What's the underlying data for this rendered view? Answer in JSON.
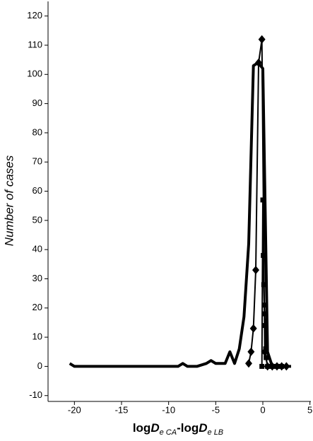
{
  "chart_data": {
    "type": "line",
    "ylabel": "Number of cases",
    "xlabel_parts": [
      "log",
      "D",
      "e CA",
      "-log",
      "D",
      "e LB"
    ],
    "xlim": [
      -22.8,
      5.1
    ],
    "xticks": [
      -20,
      -15,
      -10,
      -5,
      0,
      5
    ],
    "ylim": [
      -12,
      125
    ],
    "yticks": [
      -10,
      0,
      10,
      20,
      30,
      40,
      50,
      60,
      70,
      80,
      90,
      100,
      110,
      120
    ],
    "grid": false,
    "series": [
      {
        "color": "#000000",
        "marker": "none",
        "width": 4,
        "x": [
          -20.5,
          -20,
          -19,
          -18,
          -17,
          -16,
          -15,
          -14,
          -13,
          -12,
          -11,
          -10,
          -9,
          -8.5,
          -8,
          -7,
          -6,
          -5.5,
          -5,
          -4,
          -3.5,
          -3,
          -2.5,
          -2,
          -1.5,
          -1,
          -0.5,
          0,
          0.5,
          1,
          2,
          3
        ],
        "values": [
          1,
          0,
          0,
          0,
          0,
          0,
          0,
          0,
          0,
          0,
          0,
          0,
          0,
          1,
          0,
          0,
          1,
          2,
          1,
          1,
          5,
          1,
          6,
          17,
          42,
          103,
          104,
          102,
          5,
          0,
          0,
          0
        ]
      },
      {
        "color": "#000000",
        "marker": "diamond",
        "width": 2,
        "x": [
          -1.5,
          -1.25,
          -1,
          -0.75,
          -0.45,
          -0.1,
          0.2,
          0.5,
          1,
          1.5,
          2,
          2.5
        ],
        "values": [
          1,
          5,
          13,
          33,
          104,
          112,
          5,
          0,
          0,
          0,
          0,
          0
        ]
      },
      {
        "color": "#000000",
        "marker": "square",
        "width": 2,
        "x": [
          -0.1,
          0,
          0.05,
          0.1,
          0.15,
          0.2,
          0.25,
          0.3,
          0.35,
          0.5,
          1,
          1.5,
          2
        ],
        "values": [
          0,
          57,
          38,
          28,
          21,
          18,
          14,
          6,
          3,
          0,
          0,
          0,
          0
        ]
      }
    ]
  }
}
